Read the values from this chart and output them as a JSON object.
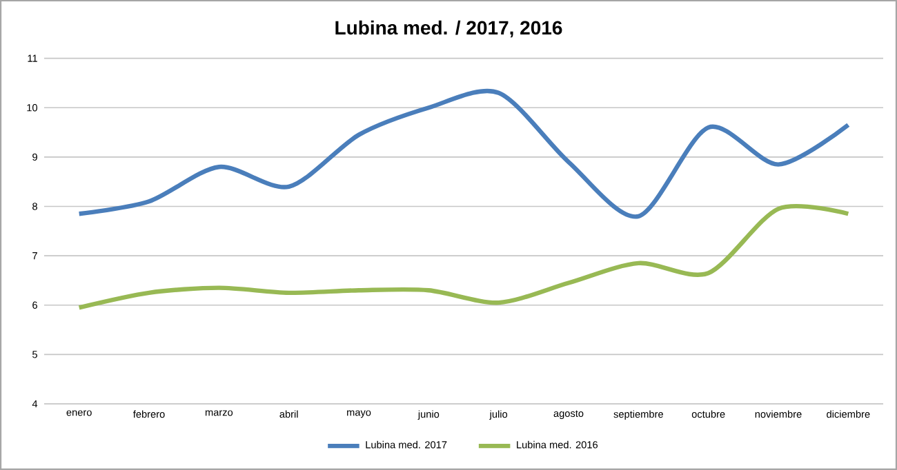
{
  "chart_data": {
    "type": "line",
    "title": "Lubina med. / 2017, 2016",
    "categories": [
      "enero",
      "febrero",
      "marzo",
      "abril",
      "mayo",
      "junio",
      "julio",
      "agosto",
      "septiembre",
      "octubre",
      "noviembre",
      "diciembre"
    ],
    "series": [
      {
        "name": "Lubina med. 2017",
        "color": "#4a7ebb",
        "values": [
          7.85,
          8.1,
          8.8,
          8.4,
          9.45,
          10.0,
          10.3,
          8.9,
          7.8,
          9.6,
          8.85,
          9.65
        ]
      },
      {
        "name": "Lubina med. 2016",
        "color": "#98b954",
        "values": [
          5.95,
          6.25,
          6.35,
          6.25,
          6.3,
          6.3,
          6.05,
          6.45,
          6.85,
          6.65,
          7.95,
          7.85
        ]
      }
    ],
    "ylim": [
      4,
      11
    ],
    "yticks": [
      4,
      5,
      6,
      7,
      8,
      9,
      10,
      11
    ],
    "grid": "y",
    "legend": "bottom",
    "marker": "none",
    "line_style": "solid"
  }
}
